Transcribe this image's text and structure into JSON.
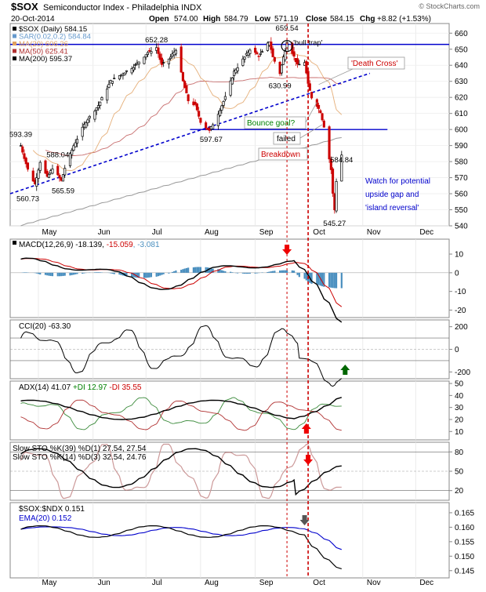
{
  "header": {
    "symbol": "$SOX",
    "name": "Semiconductor Index - Philadelphia INDX",
    "date": "20-Oct-2014",
    "open_label": "Open",
    "open": "574.00",
    "high_label": "High",
    "high": "584.79",
    "low_label": "Low",
    "low": "571.19",
    "close_label": "Close",
    "close": "584.15",
    "chg_label": "Chg",
    "chg": "+8.82 (+1.53%)",
    "watermark": "© StockCharts.com"
  },
  "colors": {
    "up": "#000000",
    "down": "#cc0000",
    "trend": "#0000cc",
    "sar": "#6699cc",
    "ma20": "#e0a060",
    "ma50": "#b03030",
    "ma200": "#999999",
    "hist": "#4a8fbf"
  },
  "chart_data": [
    {
      "type": "candlestick",
      "title": "$SOX (Daily) 584.15",
      "legend": [
        {
          "text": "$SOX (Daily) 584.15",
          "color": "#000000"
        },
        {
          "text": "SAR(0.02,0.2) 584.84",
          "color": "#6699cc"
        },
        {
          "text": "MA(20) 606.26",
          "color": "#e0a060"
        },
        {
          "text": "MA(50) 625.41",
          "color": "#b03030"
        },
        {
          "text": "MA(200) 595.37",
          "color": "#000000"
        }
      ],
      "ylim": [
        540,
        666
      ],
      "yticks": [
        "540",
        "550",
        "560",
        "570",
        "580",
        "590",
        "600",
        "610",
        "620",
        "630",
        "640",
        "650",
        "660"
      ],
      "xticks": [
        "May",
        "Jun",
        "Jul",
        "Aug",
        "Sep",
        "Oct",
        "Nov",
        "Dec"
      ],
      "ohlc_waypoints": [
        {
          "d": "2014-04-21",
          "c": 590
        },
        {
          "d": "2014-04-25",
          "c": 575
        },
        {
          "d": "2014-04-29",
          "c": 566
        },
        {
          "d": "2014-05-02",
          "c": 580
        },
        {
          "d": "2014-05-06",
          "c": 570
        },
        {
          "d": "2014-05-09",
          "c": 576
        },
        {
          "d": "2014-05-14",
          "c": 568
        },
        {
          "d": "2014-05-16",
          "c": 576
        },
        {
          "d": "2014-05-21",
          "c": 590
        },
        {
          "d": "2014-05-28",
          "c": 605
        },
        {
          "d": "2014-06-04",
          "c": 615
        },
        {
          "d": "2014-06-11",
          "c": 630
        },
        {
          "d": "2014-06-18",
          "c": 635
        },
        {
          "d": "2014-06-25",
          "c": 640
        },
        {
          "d": "2014-07-02",
          "c": 648
        },
        {
          "d": "2014-07-07",
          "c": 651
        },
        {
          "d": "2014-07-10",
          "c": 640
        },
        {
          "d": "2014-07-15",
          "c": 645
        },
        {
          "d": "2014-07-18",
          "c": 650
        },
        {
          "d": "2014-07-22",
          "c": 630
        },
        {
          "d": "2014-07-25",
          "c": 618
        },
        {
          "d": "2014-07-29",
          "c": 615
        },
        {
          "d": "2014-08-01",
          "c": 605
        },
        {
          "d": "2014-08-06",
          "c": 599
        },
        {
          "d": "2014-08-11",
          "c": 610
        },
        {
          "d": "2014-08-15",
          "c": 620
        },
        {
          "d": "2014-08-20",
          "c": 636
        },
        {
          "d": "2014-08-26",
          "c": 645
        },
        {
          "d": "2014-08-29",
          "c": 650
        },
        {
          "d": "2014-09-03",
          "c": 646
        },
        {
          "d": "2014-09-05",
          "c": 648
        },
        {
          "d": "2014-09-09",
          "c": 655
        },
        {
          "d": "2014-09-11",
          "c": 645
        },
        {
          "d": "2014-09-15",
          "c": 635
        },
        {
          "d": "2014-09-19",
          "c": 655
        },
        {
          "d": "2014-09-22",
          "c": 648
        },
        {
          "d": "2014-09-25",
          "c": 640
        },
        {
          "d": "2014-09-29",
          "c": 642
        },
        {
          "d": "2014-10-01",
          "c": 628
        },
        {
          "d": "2014-10-03",
          "c": 620
        },
        {
          "d": "2014-10-06",
          "c": 615
        },
        {
          "d": "2014-10-08",
          "c": 611
        },
        {
          "d": "2014-10-10",
          "c": 602
        },
        {
          "d": "2014-10-14",
          "c": 575
        },
        {
          "d": "2014-10-15",
          "c": 560
        },
        {
          "d": "2014-10-16",
          "c": 550
        },
        {
          "d": "2014-10-17",
          "c": 568
        },
        {
          "d": "2014-10-20",
          "c": 584.15
        }
      ],
      "price_labels": [
        {
          "text": "593.39",
          "d": "2014-04-21",
          "v": 593.39
        },
        {
          "text": "588.04",
          "d": "2014-05-12",
          "v": 588.04
        },
        {
          "text": "560.73",
          "d": "2014-04-25",
          "v": 560.73
        },
        {
          "text": "565.59",
          "d": "2014-05-15",
          "v": 565.59
        },
        {
          "text": "652.28",
          "d": "2014-07-07",
          "v": 652.28
        },
        {
          "text": "597.67",
          "d": "2014-08-07",
          "v": 597.67
        },
        {
          "text": "630.99",
          "d": "2014-09-15",
          "v": 630.99
        },
        {
          "text": "659.54",
          "d": "2014-09-19",
          "v": 659.54
        },
        {
          "text": "584.84",
          "d": "2014-10-20",
          "v": 584.84
        },
        {
          "text": "545.27",
          "d": "2014-10-16",
          "v": 545.27
        }
      ],
      "levels": [
        653,
        600
      ],
      "trendline": [
        {
          "d": "2014-04-15",
          "v": 560
        },
        {
          "d": "2014-11-05",
          "v": 635
        }
      ],
      "annotations": {
        "bulltrap": "'bull trap'",
        "death_cross": "'Death Cross'",
        "bounce_goal": "Bounce goal?",
        "failed": "failed",
        "breakdown": "Breakdown",
        "watch": [
          "Watch for potential",
          "upside gap and",
          "'island reversal'"
        ]
      }
    },
    {
      "type": "line",
      "title": "MACD(12,26,9) -18.139, -15.059, -3.081",
      "legend_base": "MACD(12,26,9) -18.139, ",
      "legend_signal": "-15.059",
      "legend_hist": ", -3.081",
      "ylim": [
        -24,
        18
      ],
      "yticks": [
        "-20",
        "-10",
        "0",
        "10"
      ]
    },
    {
      "type": "line",
      "title": "CCI(20) -63.30",
      "ylim": [
        -260,
        260
      ],
      "yticks": [
        "-200",
        "0",
        "200"
      ]
    },
    {
      "type": "line",
      "title_parts": [
        "ADX(14) 41.07 ",
        "+DI 12.97 ",
        "-DI 35.55"
      ],
      "ylim": [
        3,
        52
      ],
      "yticks": [
        "10",
        "20",
        "30",
        "40",
        "50"
      ]
    },
    {
      "type": "line",
      "title_1": "Slow STO %K(39) %D(1) 27.54, 27.54",
      "title_2": "Slow STO %K(14) %D(3) 32.54, 24.76",
      "ylim": [
        5,
        95
      ],
      "yticks": [
        "20",
        "50",
        "80"
      ]
    },
    {
      "type": "line",
      "title": "$SOX:$NDX 0.151",
      "legend_ema": "EMA(20) 0.152",
      "ylim": [
        0.1425,
        0.1685
      ],
      "yticks": [
        "0.145",
        "0.150",
        "0.155",
        "0.160",
        "0.165"
      ]
    }
  ]
}
